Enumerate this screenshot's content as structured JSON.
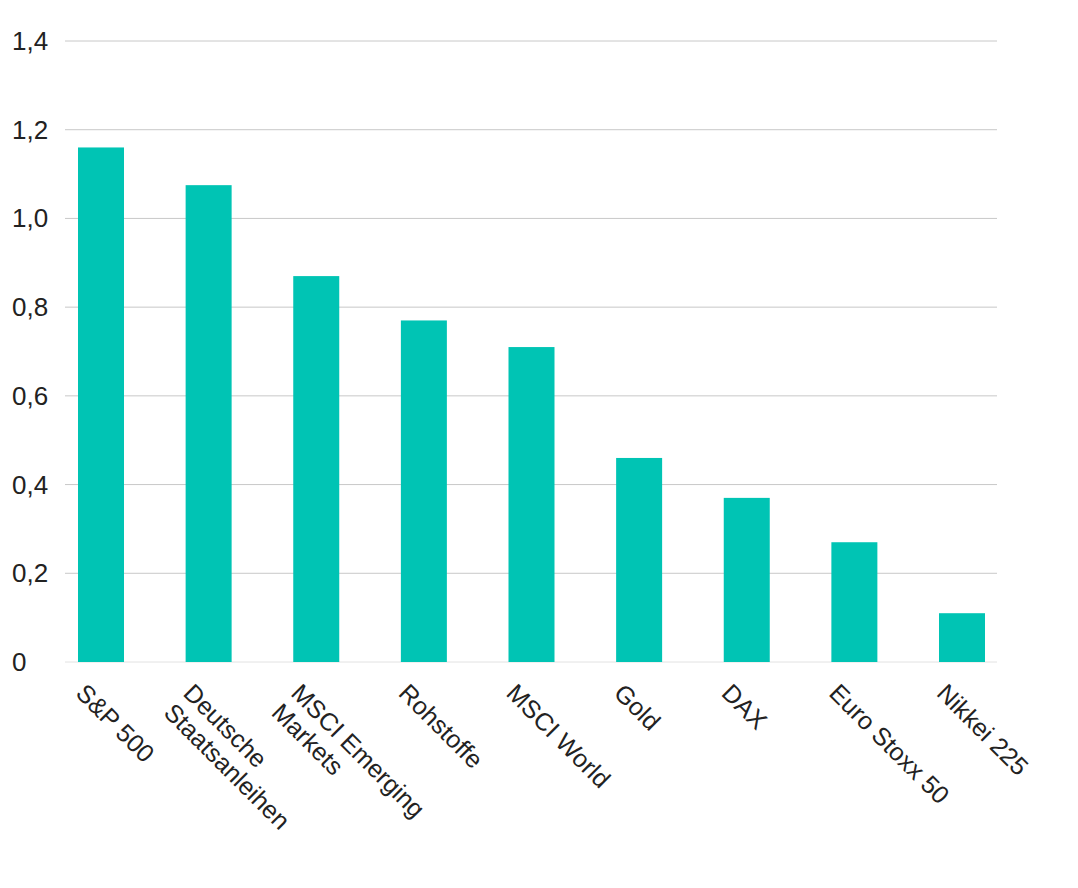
{
  "chart_data": {
    "type": "bar",
    "categories": [
      "S&P 500",
      "Deutsche Staatsanleihen",
      "MSCI Emerging Markets",
      "Rohstoffe",
      "MSCI World",
      "Gold",
      "DAX",
      "Euro Stoxx 50",
      "Nikkei 225"
    ],
    "values": [
      1.16,
      1.075,
      0.87,
      0.77,
      0.71,
      0.46,
      0.37,
      0.27,
      0.11
    ],
    "color": "#00c4b4",
    "ylim": [
      0,
      1.4
    ],
    "yticks": [
      0,
      {
        "value": 0.2,
        "label": "0,2"
      },
      {
        "value": 0.4,
        "label": "0,4"
      },
      {
        "value": 0.6,
        "label": "0,6"
      },
      {
        "value": 0.8,
        "label": "0,8"
      },
      {
        "value": 1,
        "label": "1,0"
      },
      {
        "value": 1.2,
        "label": "1,2"
      },
      {
        "value": 1.4,
        "label": "1,4"
      }
    ],
    "grid": true
  }
}
